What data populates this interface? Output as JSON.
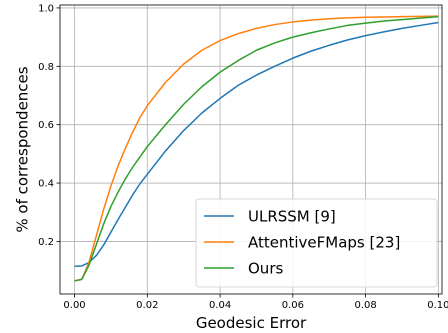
{
  "chart_data": {
    "type": "line",
    "title": "",
    "xlabel": "Geodesic Error",
    "ylabel": "% of correspondences",
    "xlim": [
      -0.004,
      0.101
    ],
    "ylim": [
      0.02,
      1.01
    ],
    "xticks": [
      0.0,
      0.02,
      0.04,
      0.06,
      0.08,
      0.1
    ],
    "xtick_labels": [
      "0.00",
      "0.02",
      "0.04",
      "0.06",
      "0.08",
      "0.10"
    ],
    "yticks": [
      0.2,
      0.4,
      0.6,
      0.8,
      1.0
    ],
    "ytick_labels": [
      "0.2",
      "0.4",
      "0.6",
      "0.8",
      "1.0"
    ],
    "grid": true,
    "legend_position": "bottom-right",
    "series": [
      {
        "name": "ULRSSM [9]",
        "color": "#1f77b4",
        "x": [
          0.0,
          0.002,
          0.004,
          0.006,
          0.008,
          0.01,
          0.012,
          0.014,
          0.016,
          0.018,
          0.02,
          0.025,
          0.03,
          0.035,
          0.04,
          0.045,
          0.05,
          0.055,
          0.06,
          0.065,
          0.07,
          0.075,
          0.08,
          0.085,
          0.09,
          0.095,
          0.1
        ],
        "y": [
          0.115,
          0.116,
          0.128,
          0.152,
          0.188,
          0.232,
          0.276,
          0.318,
          0.36,
          0.398,
          0.43,
          0.51,
          0.58,
          0.64,
          0.69,
          0.735,
          0.77,
          0.8,
          0.828,
          0.852,
          0.872,
          0.89,
          0.905,
          0.918,
          0.93,
          0.94,
          0.95
        ]
      },
      {
        "name": "AttentiveFMaps [23]",
        "color": "#ff7f0e",
        "x": [
          0.0,
          0.002,
          0.004,
          0.006,
          0.008,
          0.01,
          0.012,
          0.014,
          0.016,
          0.018,
          0.02,
          0.025,
          0.03,
          0.035,
          0.04,
          0.045,
          0.05,
          0.055,
          0.06,
          0.065,
          0.07,
          0.075,
          0.08,
          0.085,
          0.09,
          0.095,
          0.1
        ],
        "y": [
          0.065,
          0.07,
          0.13,
          0.22,
          0.31,
          0.39,
          0.46,
          0.52,
          0.575,
          0.625,
          0.665,
          0.745,
          0.808,
          0.855,
          0.888,
          0.912,
          0.93,
          0.943,
          0.952,
          0.958,
          0.963,
          0.966,
          0.968,
          0.969,
          0.97,
          0.971,
          0.972
        ]
      },
      {
        "name": "Ours",
        "color": "#2ca02c",
        "x": [
          0.0,
          0.002,
          0.004,
          0.006,
          0.008,
          0.01,
          0.012,
          0.014,
          0.016,
          0.018,
          0.02,
          0.025,
          0.03,
          0.035,
          0.04,
          0.045,
          0.05,
          0.055,
          0.06,
          0.065,
          0.07,
          0.075,
          0.08,
          0.085,
          0.09,
          0.095,
          0.1
        ],
        "y": [
          0.065,
          0.07,
          0.12,
          0.19,
          0.26,
          0.32,
          0.37,
          0.415,
          0.455,
          0.49,
          0.525,
          0.6,
          0.67,
          0.73,
          0.78,
          0.82,
          0.855,
          0.88,
          0.9,
          0.915,
          0.928,
          0.94,
          0.948,
          0.955,
          0.96,
          0.965,
          0.97
        ]
      }
    ]
  }
}
